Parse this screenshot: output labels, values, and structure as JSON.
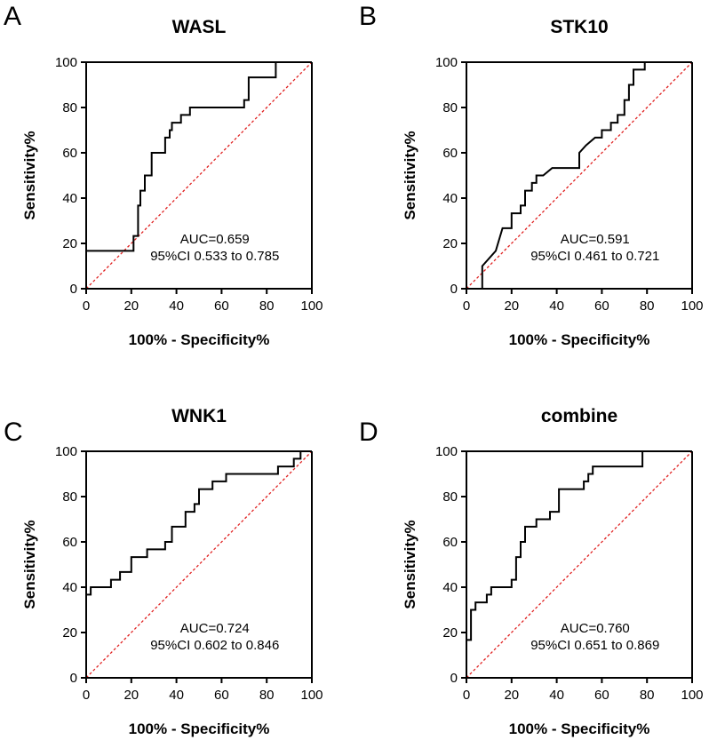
{
  "chart_data": [
    {
      "type": "line",
      "panel": "A",
      "title": "WASL",
      "xlabel": "100% - Specificity%",
      "ylabel": "Sensitivity%",
      "xlim": [
        0,
        100
      ],
      "ylim": [
        0,
        100
      ],
      "xticks": [
        "0",
        "20",
        "40",
        "60",
        "80",
        "100"
      ],
      "yticks": [
        "0",
        "20",
        "40",
        "60",
        "80",
        "100"
      ],
      "annotation": [
        "AUC=0.659",
        "95%CI 0.533 to 0.785"
      ],
      "reference_line": "diagonal",
      "series": [
        {
          "name": "ROC",
          "x": [
            0,
            0,
            21,
            21,
            23,
            23,
            24,
            24,
            26,
            26,
            29,
            29,
            35,
            35,
            37,
            37,
            38,
            38,
            42,
            42,
            46,
            46,
            50,
            50,
            70,
            70,
            72,
            72,
            84,
            84
          ],
          "y": [
            0,
            16.7,
            16.7,
            23.3,
            23.3,
            36.7,
            36.7,
            43.3,
            43.3,
            50,
            50,
            60,
            60,
            66.7,
            66.7,
            70,
            70,
            73.3,
            73.3,
            76.7,
            76.7,
            80,
            80,
            80,
            80,
            83.3,
            83.3,
            93.3,
            93.3,
            100
          ]
        }
      ]
    },
    {
      "type": "line",
      "panel": "B",
      "title": "STK10",
      "xlabel": "100% - Specificity%",
      "ylabel": "Sensitivity%",
      "xlim": [
        0,
        100
      ],
      "ylim": [
        0,
        100
      ],
      "xticks": [
        "0",
        "20",
        "40",
        "60",
        "80",
        "100"
      ],
      "yticks": [
        "0",
        "20",
        "40",
        "60",
        "80",
        "100"
      ],
      "annotation": [
        "AUC=0.591",
        "95%CI 0.461 to 0.721"
      ],
      "reference_line": "diagonal",
      "series": [
        {
          "name": "ROC",
          "x": [
            7,
            7,
            13,
            16,
            16,
            20,
            20,
            24,
            24,
            26,
            26,
            29,
            29,
            31,
            31,
            34,
            38,
            50,
            50,
            53,
            57,
            57,
            60,
            60,
            64,
            64,
            67,
            67,
            70,
            70,
            72,
            72,
            74,
            74,
            76,
            76,
            79,
            79
          ],
          "y": [
            0,
            10,
            16.7,
            26.7,
            26.7,
            26.7,
            33.3,
            33.3,
            36.7,
            36.7,
            43.3,
            43.3,
            46.7,
            46.7,
            50,
            50,
            53.3,
            53.3,
            60,
            63.3,
            66.7,
            66.7,
            66.7,
            70,
            70,
            73.3,
            73.3,
            76.7,
            76.7,
            83.3,
            83.3,
            90,
            90,
            96.7,
            96.7,
            96.7,
            96.7,
            100
          ]
        }
      ]
    },
    {
      "type": "line",
      "panel": "C",
      "title": "WNK1",
      "xlabel": "100% - Specificity%",
      "ylabel": "Sensitivity%",
      "xlim": [
        0,
        100
      ],
      "ylim": [
        0,
        100
      ],
      "xticks": [
        "0",
        "20",
        "40",
        "60",
        "80",
        "100"
      ],
      "yticks": [
        "0",
        "20",
        "40",
        "60",
        "80",
        "100"
      ],
      "annotation": [
        "AUC=0.724",
        "95%CI 0.602 to 0.846"
      ],
      "reference_line": "diagonal",
      "series": [
        {
          "name": "ROC",
          "x": [
            0,
            0,
            2,
            2,
            11,
            11,
            15,
            15,
            20,
            20,
            24,
            24,
            27,
            27,
            31,
            31,
            35,
            35,
            38,
            38,
            44,
            44,
            48,
            48,
            50,
            50,
            56,
            56,
            62,
            62,
            85,
            85,
            92,
            92,
            95,
            95
          ],
          "y": [
            0,
            36.7,
            36.7,
            40,
            40,
            43.3,
            43.3,
            46.7,
            46.7,
            53.3,
            53.3,
            53.3,
            53.3,
            56.7,
            56.7,
            56.7,
            56.7,
            60,
            60,
            66.7,
            66.7,
            73.3,
            73.3,
            76.7,
            76.7,
            83.3,
            83.3,
            86.7,
            86.7,
            90,
            90,
            93.3,
            93.3,
            96.7,
            96.7,
            100
          ]
        }
      ]
    },
    {
      "type": "line",
      "panel": "D",
      "title": "combine",
      "xlabel": "100% - Specificity%",
      "ylabel": "Sensitivity%",
      "xlim": [
        0,
        100
      ],
      "ylim": [
        0,
        100
      ],
      "xticks": [
        "0",
        "20",
        "40",
        "60",
        "80",
        "100"
      ],
      "yticks": [
        "0",
        "20",
        "40",
        "60",
        "80",
        "100"
      ],
      "annotation": [
        "AUC=0.760",
        "95%CI 0.651 to 0.869"
      ],
      "reference_line": "diagonal",
      "series": [
        {
          "name": "ROC",
          "x": [
            0,
            0,
            2,
            2,
            4,
            4,
            7,
            7,
            9,
            9,
            11,
            11,
            17,
            17,
            20,
            20,
            22,
            22,
            24,
            24,
            26,
            26,
            28,
            28,
            31,
            31,
            35,
            35,
            37,
            37,
            41,
            41,
            52,
            52,
            54,
            54,
            56,
            56,
            78,
            78
          ],
          "y": [
            0,
            16.7,
            16.7,
            30,
            30,
            33.3,
            33.3,
            33.3,
            33.3,
            36.7,
            36.7,
            40,
            40,
            40,
            40,
            43.3,
            43.3,
            53.3,
            53.3,
            60,
            60,
            66.7,
            66.7,
            66.7,
            66.7,
            70,
            70,
            70,
            70,
            73.3,
            73.3,
            83.3,
            83.3,
            86.7,
            86.7,
            90,
            90,
            93.3,
            93.3,
            100
          ]
        }
      ]
    }
  ]
}
